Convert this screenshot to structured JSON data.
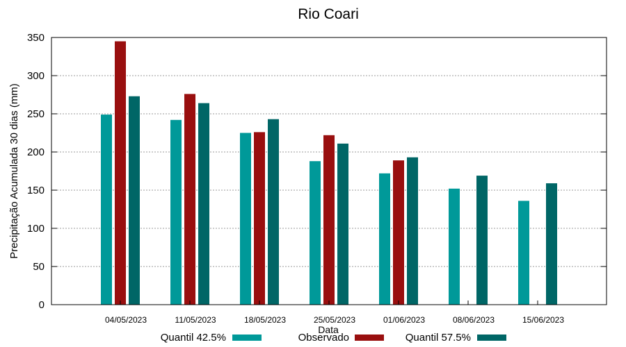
{
  "chart_data": {
    "type": "bar",
    "title": "Rio Coari",
    "xlabel": "Data",
    "ylabel": "Precipitação Acumulada 30 dias (mm)",
    "ylim": [
      0,
      350
    ],
    "yticks": [
      0,
      50,
      100,
      150,
      200,
      250,
      300,
      350
    ],
    "grid": true,
    "legend_position": "bottom",
    "categories": [
      "04/05/2023",
      "11/05/2023",
      "18/05/2023",
      "25/05/2023",
      "01/06/2023",
      "08/06/2023",
      "15/06/2023"
    ],
    "series": [
      {
        "name": "Quantil 42.5%",
        "color": "#009999",
        "values": [
          249,
          242,
          225,
          188,
          172,
          152,
          136
        ]
      },
      {
        "name": "Observado",
        "color": "#990f0f",
        "values": [
          345,
          276,
          226,
          222,
          189,
          null,
          null
        ]
      },
      {
        "name": "Quantil 57.5%",
        "color": "#006666",
        "values": [
          273,
          264,
          243,
          211,
          193,
          169,
          159
        ]
      }
    ]
  }
}
